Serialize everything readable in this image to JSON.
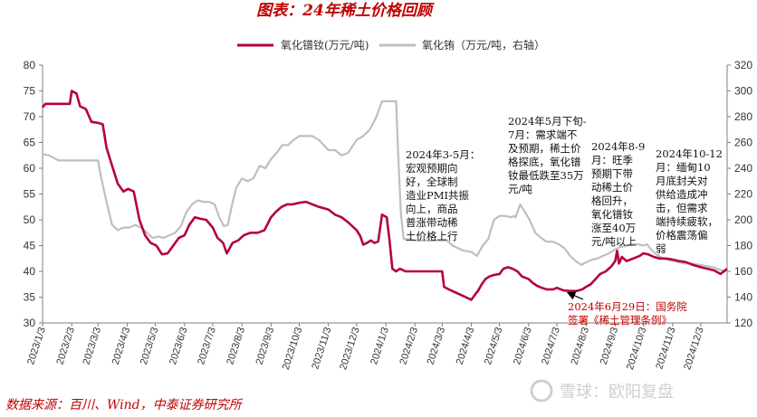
{
  "chart_data": {
    "type": "line",
    "title": "图表：24年稀土价格回顾",
    "source": "数据来源：百川、Wind，中泰证券研究所",
    "watermark": "雪球：欧阳复盘",
    "x_ticks": [
      "2023/1/3",
      "2023/2/3",
      "2023/3/3",
      "2023/4/3",
      "2023/5/3",
      "2023/6/3",
      "2023/7/3",
      "2023/8/3",
      "2023/9/3",
      "2023/10/3",
      "2023/11/3",
      "2023/12/3",
      "2024/1/3",
      "2024/2/3",
      "2024/3/3",
      "2024/4/3",
      "2024/5/3",
      "2024/6/3",
      "2024/7/3",
      "2024/8/3",
      "2024/9/3",
      "2024/10/3",
      "2024/11/3",
      "2024/12/3"
    ],
    "y_left": {
      "min": 30,
      "max": 80,
      "step": 5
    },
    "y_right": {
      "min": 120,
      "max": 320,
      "step": 20
    },
    "grid": false,
    "legend_position": "top",
    "series": [
      {
        "name": "氧化镨钕(万元/吨)",
        "axis": "left",
        "color": "#b5003e",
        "points": [
          [
            "2023-01-03",
            71.8
          ],
          [
            "2023-01-06",
            72.5
          ],
          [
            "2023-01-20",
            72.5
          ],
          [
            "2023-02-01",
            72.5
          ],
          [
            "2023-02-03",
            75
          ],
          [
            "2023-02-08",
            74.5
          ],
          [
            "2023-02-12",
            72
          ],
          [
            "2023-02-18",
            71.5
          ],
          [
            "2023-02-24",
            69
          ],
          [
            "2023-03-03",
            68.8
          ],
          [
            "2023-03-08",
            68.5
          ],
          [
            "2023-03-12",
            64
          ],
          [
            "2023-03-18",
            60.5
          ],
          [
            "2023-03-24",
            57
          ],
          [
            "2023-03-30",
            55.5
          ],
          [
            "2023-04-04",
            56
          ],
          [
            "2023-04-10",
            55.5
          ],
          [
            "2023-04-16",
            50
          ],
          [
            "2023-04-22",
            47
          ],
          [
            "2023-04-28",
            45.5
          ],
          [
            "2023-05-04",
            45
          ],
          [
            "2023-05-10",
            43.3
          ],
          [
            "2023-05-16",
            43.5
          ],
          [
            "2023-05-22",
            45
          ],
          [
            "2023-05-28",
            46.5
          ],
          [
            "2023-06-03",
            47
          ],
          [
            "2023-06-08",
            49
          ],
          [
            "2023-06-14",
            50.5
          ],
          [
            "2023-06-20",
            50.2
          ],
          [
            "2023-06-26",
            50
          ],
          [
            "2023-07-03",
            48.5
          ],
          [
            "2023-07-08",
            46.5
          ],
          [
            "2023-07-14",
            45.5
          ],
          [
            "2023-07-18",
            43.5
          ],
          [
            "2023-07-24",
            45.5
          ],
          [
            "2023-07-30",
            46
          ],
          [
            "2023-08-05",
            47
          ],
          [
            "2023-08-12",
            47.5
          ],
          [
            "2023-08-20",
            47.5
          ],
          [
            "2023-08-27",
            48
          ],
          [
            "2023-09-03",
            50.5
          ],
          [
            "2023-09-08",
            51.5
          ],
          [
            "2023-09-14",
            52.5
          ],
          [
            "2023-09-20",
            53
          ],
          [
            "2023-09-26",
            53
          ],
          [
            "2023-10-03",
            53.3
          ],
          [
            "2023-10-10",
            53.5
          ],
          [
            "2023-10-17",
            53
          ],
          [
            "2023-10-24",
            52.5
          ],
          [
            "2023-11-03",
            52
          ],
          [
            "2023-11-10",
            51
          ],
          [
            "2023-11-17",
            50.5
          ],
          [
            "2023-11-24",
            49.5
          ],
          [
            "2023-12-03",
            48
          ],
          [
            "2023-12-07",
            46.8
          ],
          [
            "2023-12-10",
            45.2
          ],
          [
            "2023-12-14",
            45.5
          ],
          [
            "2023-12-18",
            46
          ],
          [
            "2023-12-22",
            45.5
          ],
          [
            "2023-12-26",
            45.8
          ],
          [
            "2023-12-30",
            51
          ],
          [
            "2024-01-04",
            50.5
          ],
          [
            "2024-01-07",
            46
          ],
          [
            "2024-01-10",
            40.5
          ],
          [
            "2024-01-14",
            40
          ],
          [
            "2024-01-18",
            40.5
          ],
          [
            "2024-01-24",
            40
          ],
          [
            "2024-02-03",
            40
          ],
          [
            "2024-02-13",
            40
          ],
          [
            "2024-02-23",
            40
          ],
          [
            "2024-03-03",
            40
          ],
          [
            "2024-03-05",
            37
          ],
          [
            "2024-03-10",
            36.5
          ],
          [
            "2024-03-16",
            36
          ],
          [
            "2024-03-22",
            35.5
          ],
          [
            "2024-03-28",
            35
          ],
          [
            "2024-04-03",
            34.5
          ],
          [
            "2024-04-07",
            35.5
          ],
          [
            "2024-04-10",
            36.2
          ],
          [
            "2024-04-14",
            37.5
          ],
          [
            "2024-04-18",
            38.5
          ],
          [
            "2024-04-22",
            39
          ],
          [
            "2024-04-27",
            39.3
          ],
          [
            "2024-05-03",
            39.5
          ],
          [
            "2024-05-07",
            40.5
          ],
          [
            "2024-05-12",
            40.8
          ],
          [
            "2024-05-17",
            40.5
          ],
          [
            "2024-05-22",
            40
          ],
          [
            "2024-05-27",
            39
          ],
          [
            "2024-06-03",
            38.5
          ],
          [
            "2024-06-07",
            37.8
          ],
          [
            "2024-06-12",
            37.2
          ],
          [
            "2024-06-17",
            36.8
          ],
          [
            "2024-06-22",
            36.5
          ],
          [
            "2024-06-29",
            36.5
          ],
          [
            "2024-07-03",
            36.8
          ],
          [
            "2024-07-10",
            36.3
          ],
          [
            "2024-07-17",
            36.2
          ],
          [
            "2024-07-24",
            36.2
          ],
          [
            "2024-07-30",
            36.5
          ],
          [
            "2024-08-03",
            37
          ],
          [
            "2024-08-08",
            37.5
          ],
          [
            "2024-08-13",
            38.5
          ],
          [
            "2024-08-18",
            39.5
          ],
          [
            "2024-08-24",
            40
          ],
          [
            "2024-08-30",
            41
          ],
          [
            "2024-09-03",
            42
          ],
          [
            "2024-09-05",
            44
          ],
          [
            "2024-09-07",
            41.5
          ],
          [
            "2024-09-10",
            42.8
          ],
          [
            "2024-09-15",
            42
          ],
          [
            "2024-09-22",
            42.5
          ],
          [
            "2024-09-29",
            43
          ],
          [
            "2024-10-03",
            43.5
          ],
          [
            "2024-10-08",
            43.3
          ],
          [
            "2024-10-14",
            42.8
          ],
          [
            "2024-10-20",
            42.5
          ],
          [
            "2024-10-27",
            42.5
          ],
          [
            "2024-11-03",
            42.3
          ],
          [
            "2024-11-10",
            42
          ],
          [
            "2024-11-17",
            41.8
          ],
          [
            "2024-11-24",
            41.3
          ],
          [
            "2024-12-03",
            40.8
          ],
          [
            "2024-12-10",
            40.5
          ],
          [
            "2024-12-17",
            40.2
          ],
          [
            "2024-12-24",
            39.5
          ],
          [
            "2024-12-31",
            40.5
          ]
        ]
      },
      {
        "name": "氧化铕（万元/吨，右轴）",
        "axis": "right",
        "color": "#bfbfbf",
        "points": [
          [
            "2023-01-03",
            251
          ],
          [
            "2023-01-10",
            250
          ],
          [
            "2023-01-20",
            246
          ],
          [
            "2023-02-01",
            246
          ],
          [
            "2023-02-10",
            246
          ],
          [
            "2023-02-20",
            246
          ],
          [
            "2023-03-03",
            246
          ],
          [
            "2023-03-06",
            234
          ],
          [
            "2023-03-12",
            214
          ],
          [
            "2023-03-18",
            196
          ],
          [
            "2023-03-24",
            192
          ],
          [
            "2023-03-30",
            194
          ],
          [
            "2023-04-05",
            194
          ],
          [
            "2023-04-12",
            196
          ],
          [
            "2023-04-18",
            194
          ],
          [
            "2023-04-24",
            190
          ],
          [
            "2023-04-30",
            186
          ],
          [
            "2023-05-06",
            187
          ],
          [
            "2023-05-12",
            186
          ],
          [
            "2023-05-18",
            188
          ],
          [
            "2023-05-24",
            190
          ],
          [
            "2023-05-30",
            195
          ],
          [
            "2023-06-05",
            206
          ],
          [
            "2023-06-11",
            212
          ],
          [
            "2023-06-17",
            215
          ],
          [
            "2023-06-23",
            214
          ],
          [
            "2023-06-29",
            214
          ],
          [
            "2023-07-05",
            212
          ],
          [
            "2023-07-10",
            202
          ],
          [
            "2023-07-15",
            195
          ],
          [
            "2023-07-19",
            196
          ],
          [
            "2023-07-23",
            210
          ],
          [
            "2023-07-28",
            225
          ],
          [
            "2023-08-03",
            232
          ],
          [
            "2023-08-09",
            230
          ],
          [
            "2023-08-15",
            232
          ],
          [
            "2023-08-22",
            242
          ],
          [
            "2023-08-28",
            240
          ],
          [
            "2023-09-03",
            247
          ],
          [
            "2023-09-09",
            252
          ],
          [
            "2023-09-15",
            258
          ],
          [
            "2023-09-21",
            258
          ],
          [
            "2023-09-27",
            262
          ],
          [
            "2023-10-03",
            265
          ],
          [
            "2023-10-10",
            265
          ],
          [
            "2023-10-17",
            265
          ],
          [
            "2023-10-24",
            262
          ],
          [
            "2023-11-03",
            254
          ],
          [
            "2023-11-10",
            254
          ],
          [
            "2023-11-17",
            250
          ],
          [
            "2023-11-24",
            252
          ],
          [
            "2023-12-03",
            262
          ],
          [
            "2023-12-10",
            265
          ],
          [
            "2023-12-17",
            270
          ],
          [
            "2023-12-24",
            280
          ],
          [
            "2023-12-30",
            292
          ],
          [
            "2024-01-03",
            292
          ],
          [
            "2024-01-08",
            292
          ],
          [
            "2024-01-14",
            292
          ],
          [
            "2024-01-16",
            255
          ],
          [
            "2024-01-19",
            205
          ],
          [
            "2024-01-22",
            185
          ],
          [
            "2024-01-28",
            185
          ],
          [
            "2024-02-03",
            184
          ],
          [
            "2024-02-13",
            184
          ],
          [
            "2024-02-23",
            184
          ],
          [
            "2024-03-03",
            184
          ],
          [
            "2024-03-08",
            184
          ],
          [
            "2024-03-14",
            180
          ],
          [
            "2024-03-20",
            178
          ],
          [
            "2024-03-26",
            176
          ],
          [
            "2024-04-03",
            175
          ],
          [
            "2024-04-09",
            172
          ],
          [
            "2024-04-15",
            180
          ],
          [
            "2024-04-21",
            185
          ],
          [
            "2024-04-27",
            200
          ],
          [
            "2024-05-03",
            203
          ],
          [
            "2024-05-09",
            203
          ],
          [
            "2024-05-15",
            202
          ],
          [
            "2024-05-18",
            203
          ],
          [
            "2024-05-20",
            202
          ],
          [
            "2024-05-25",
            212
          ],
          [
            "2024-05-30",
            206
          ],
          [
            "2024-06-04",
            200
          ],
          [
            "2024-06-10",
            190
          ],
          [
            "2024-06-16",
            186
          ],
          [
            "2024-06-22",
            183
          ],
          [
            "2024-06-29",
            183
          ],
          [
            "2024-07-05",
            181
          ],
          [
            "2024-07-11",
            178
          ],
          [
            "2024-07-17",
            172
          ],
          [
            "2024-07-23",
            168
          ],
          [
            "2024-07-29",
            165
          ],
          [
            "2024-08-03",
            167
          ],
          [
            "2024-08-09",
            169
          ],
          [
            "2024-08-15",
            170
          ],
          [
            "2024-08-21",
            172
          ],
          [
            "2024-08-27",
            174
          ],
          [
            "2024-09-03",
            177
          ],
          [
            "2024-09-09",
            179
          ],
          [
            "2024-09-15",
            180
          ],
          [
            "2024-09-21",
            181
          ],
          [
            "2024-09-27",
            181
          ],
          [
            "2024-10-03",
            180
          ],
          [
            "2024-10-07",
            181
          ],
          [
            "2024-10-11",
            177
          ],
          [
            "2024-10-17",
            173
          ],
          [
            "2024-10-24",
            170
          ],
          [
            "2024-11-03",
            168
          ],
          [
            "2024-11-10",
            167
          ],
          [
            "2024-11-17",
            166
          ],
          [
            "2024-11-24",
            166
          ],
          [
            "2024-12-03",
            165
          ],
          [
            "2024-12-10",
            164
          ],
          [
            "2024-12-17",
            163
          ],
          [
            "2024-12-24",
            161
          ],
          [
            "2024-12-31",
            160
          ]
        ]
      }
    ],
    "annotations": [
      {
        "lines": [
          "2024年3-5月：",
          "宏观预期向",
          "好，全球制",
          "造业PMI共振",
          "向上，商品",
          "普涨带动稀",
          "土价格上行"
        ],
        "x": 448,
        "y": 175,
        "color": "black"
      },
      {
        "lines": [
          "2024年5月下旬-",
          "7月：需求端不",
          "及预期，稀土价",
          "格探底，氧化镨",
          "钕最低跌至35万",
          "元/吨"
        ],
        "x": 561,
        "y": 138,
        "color": "black"
      },
      {
        "lines": [
          "2024年8-9",
          "月：旺季",
          "预期下带",
          "动稀土价",
          "格回升，",
          "氧化镨钕",
          "涨至40万",
          "元/吨以上"
        ],
        "x": 653,
        "y": 166,
        "color": "black"
      },
      {
        "lines": [
          "2024年10-12",
          "月：缅甸10",
          "月底封关对",
          "供给造成冲",
          "击，但需求",
          "端持续疲软，",
          "价格震荡偏",
          "弱"
        ],
        "x": 724,
        "y": 174,
        "color": "black"
      },
      {
        "lines": [
          "2024年6月29日：国务院",
          "签署《稀土管理条例》"
        ],
        "x": 627,
        "y": 343,
        "color": "red"
      }
    ]
  }
}
